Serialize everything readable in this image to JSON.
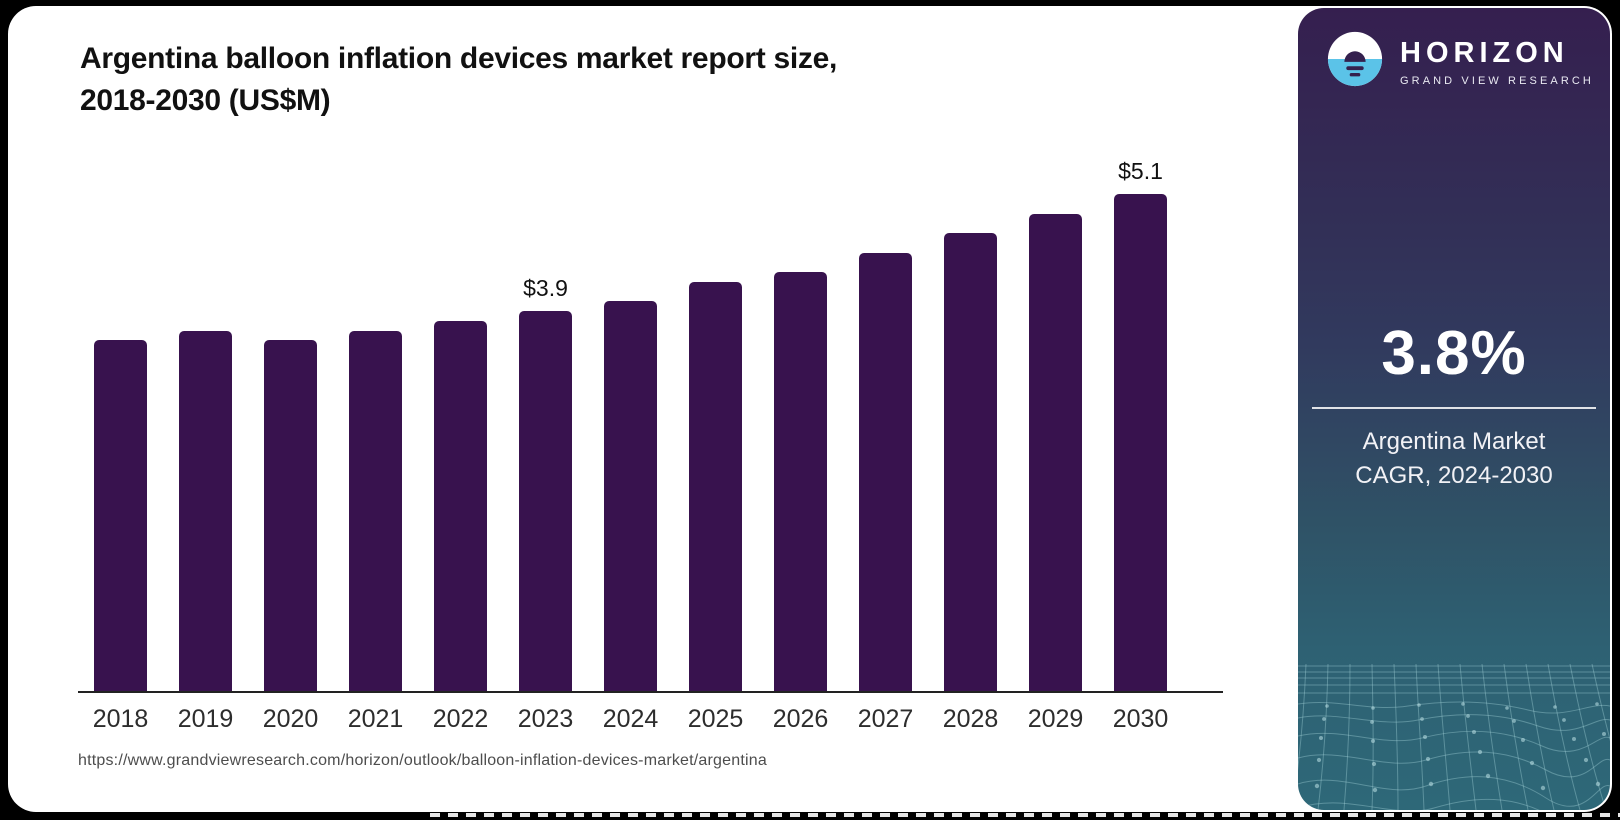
{
  "header": {
    "title_line1": "Argentina balloon inflation devices market report size,",
    "title_line2": "2018-2030 (US$M)"
  },
  "chart_data": {
    "type": "bar",
    "title": "Argentina balloon inflation devices market report size, 2018-2030 (US$M)",
    "categories": [
      "2018",
      "2019",
      "2020",
      "2021",
      "2022",
      "2023",
      "2024",
      "2025",
      "2026",
      "2027",
      "2028",
      "2029",
      "2030"
    ],
    "values": [
      3.6,
      3.7,
      3.6,
      3.7,
      3.8,
      3.9,
      4.0,
      4.2,
      4.3,
      4.5,
      4.7,
      4.9,
      5.1
    ],
    "point_labels": [
      "",
      "",
      "",
      "",
      "",
      "$3.9",
      "",
      "",
      "",
      "",
      "",
      "",
      "$5.1"
    ],
    "unit": "US$M",
    "ylabel": "",
    "xlabel": "",
    "ylim": [
      0,
      5.7
    ],
    "grid": false,
    "legend_position": "none",
    "bar_color": "#38124E"
  },
  "footer": {
    "url": "https://www.grandviewresearch.com/horizon/outlook/balloon-inflation-devices-market/argentina"
  },
  "sidebar": {
    "brand": {
      "name": "HORIZON",
      "subtitle": "GRAND VIEW RESEARCH"
    },
    "stat": {
      "value": "3.8%",
      "caption_line1": "Argentina Market",
      "caption_line2": "CAGR, 2024-2030"
    },
    "colors": {
      "gradient_top": "#351F4F",
      "gradient_mid": "#313A5E",
      "gradient_bottom": "#2E6878",
      "logo_blue": "#5BC3E8",
      "mesh_line": "#A7D8DE"
    }
  }
}
